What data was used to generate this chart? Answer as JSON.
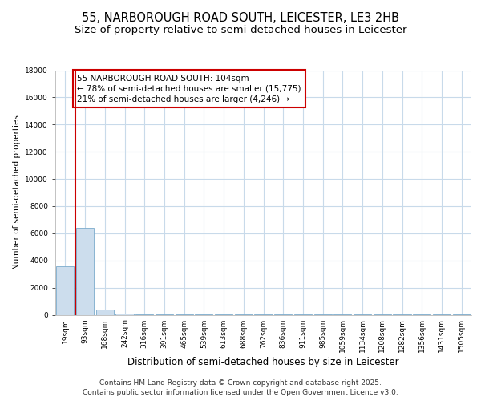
{
  "title": "55, NARBOROUGH ROAD SOUTH, LEICESTER, LE3 2HB",
  "subtitle": "Size of property relative to semi-detached houses in Leicester",
  "xlabel": "Distribution of semi-detached houses by size in Leicester",
  "ylabel": "Number of semi-detached properties",
  "bar_labels": [
    "19sqm",
    "93sqm",
    "168sqm",
    "242sqm",
    "316sqm",
    "391sqm",
    "465sqm",
    "539sqm",
    "613sqm",
    "688sqm",
    "762sqm",
    "836sqm",
    "911sqm",
    "985sqm",
    "1059sqm",
    "1134sqm",
    "1208sqm",
    "1282sqm",
    "1356sqm",
    "1431sqm",
    "1505sqm"
  ],
  "bar_values": [
    3600,
    6400,
    400,
    60,
    20,
    8,
    5,
    3,
    2,
    2,
    1,
    1,
    1,
    1,
    1,
    1,
    1,
    1,
    1,
    1,
    1
  ],
  "bar_color": "#ccdded",
  "bar_edge_color": "#7aabcc",
  "red_line_x": 0.5,
  "annotation_line1": "55 NARBOROUGH ROAD SOUTH: 104sqm",
  "annotation_line2": "← 78% of semi-detached houses are smaller (15,775)",
  "annotation_line3": "21% of semi-detached houses are larger (4,246) →",
  "annotation_box_color": "#ffffff",
  "annotation_box_edge": "#cc0000",
  "red_line_color": "#cc0000",
  "ylim": [
    0,
    18000
  ],
  "yticks": [
    0,
    2000,
    4000,
    6000,
    8000,
    10000,
    12000,
    14000,
    16000,
    18000
  ],
  "plot_bg": "#ffffff",
  "fig_bg": "#ffffff",
  "grid_color": "#c8daea",
  "footer_text1": "Contains HM Land Registry data © Crown copyright and database right 2025.",
  "footer_text2": "Contains public sector information licensed under the Open Government Licence v3.0.",
  "title_fontsize": 10.5,
  "subtitle_fontsize": 9.5,
  "xlabel_fontsize": 8.5,
  "ylabel_fontsize": 7.5,
  "tick_fontsize": 6.5,
  "annotation_fontsize": 7.5,
  "footer_fontsize": 6.5
}
